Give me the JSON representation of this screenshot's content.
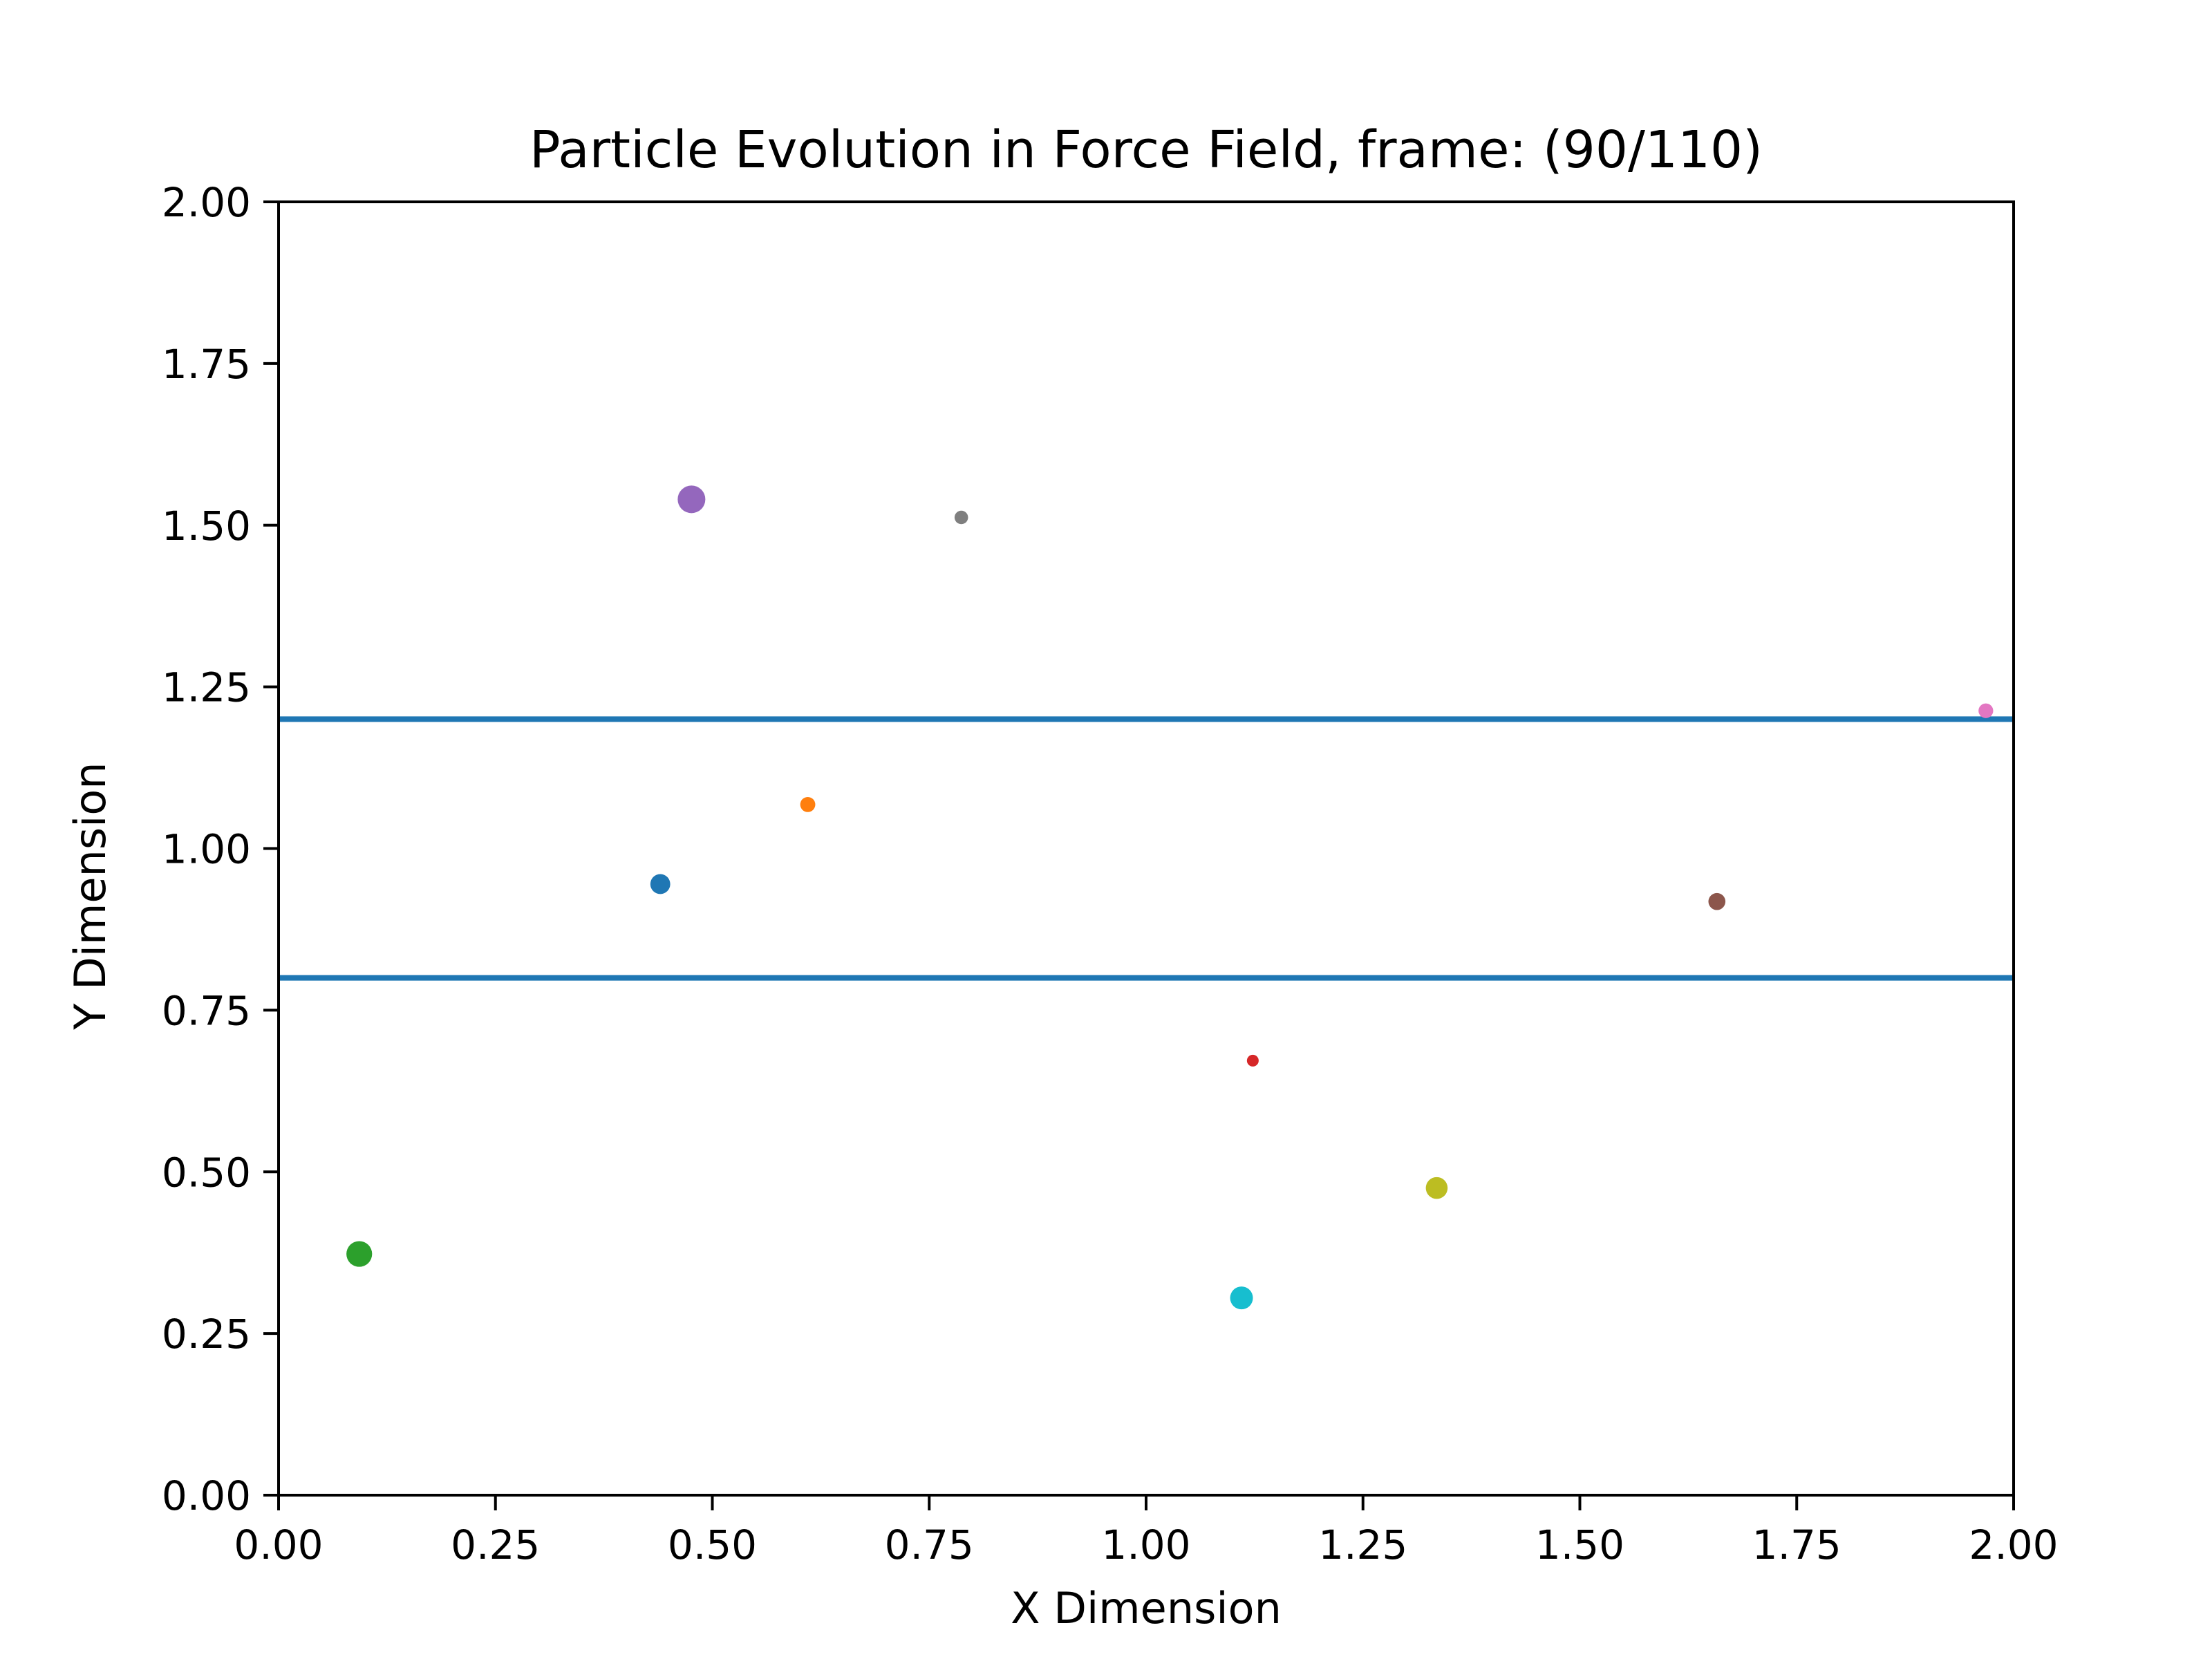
{
  "chart_data": {
    "type": "scatter",
    "title": "Particle Evolution in Force Field, frame: (90/110)",
    "xlabel": "X Dimension",
    "ylabel": "Y Dimension",
    "xlim": [
      0,
      2
    ],
    "ylim": [
      0,
      2
    ],
    "xticks": [
      "0.00",
      "0.25",
      "0.50",
      "0.75",
      "1.00",
      "1.25",
      "1.50",
      "1.75",
      "2.00"
    ],
    "yticks": [
      "0.00",
      "0.25",
      "0.50",
      "0.75",
      "1.00",
      "1.25",
      "1.50",
      "1.75",
      "2.00"
    ],
    "grid": false,
    "legend": "none",
    "hlines": [
      {
        "y": 1.2,
        "color": "#1f77b4"
      },
      {
        "y": 0.8,
        "color": "#1f77b4"
      }
    ],
    "points": [
      {
        "x": 0.44,
        "y": 0.945,
        "size": 0.6,
        "color": "#1f77b4"
      },
      {
        "x": 0.61,
        "y": 1.068,
        "size": 0.35,
        "color": "#ff7f0e"
      },
      {
        "x": 0.093,
        "y": 0.373,
        "size": 0.9,
        "color": "#2ca02c"
      },
      {
        "x": 1.123,
        "y": 0.672,
        "size": 0.18,
        "color": "#d62728"
      },
      {
        "x": 0.476,
        "y": 1.54,
        "size": 1.0,
        "color": "#9467bd"
      },
      {
        "x": 1.658,
        "y": 0.918,
        "size": 0.45,
        "color": "#8c564b"
      },
      {
        "x": 1.968,
        "y": 1.213,
        "size": 0.33,
        "color": "#e377c2"
      },
      {
        "x": 0.787,
        "y": 1.512,
        "size": 0.27,
        "color": "#7f7f7f"
      },
      {
        "x": 1.335,
        "y": 0.475,
        "size": 0.7,
        "color": "#bcbd22"
      },
      {
        "x": 1.11,
        "y": 0.305,
        "size": 0.75,
        "color": "#17becf"
      }
    ]
  }
}
